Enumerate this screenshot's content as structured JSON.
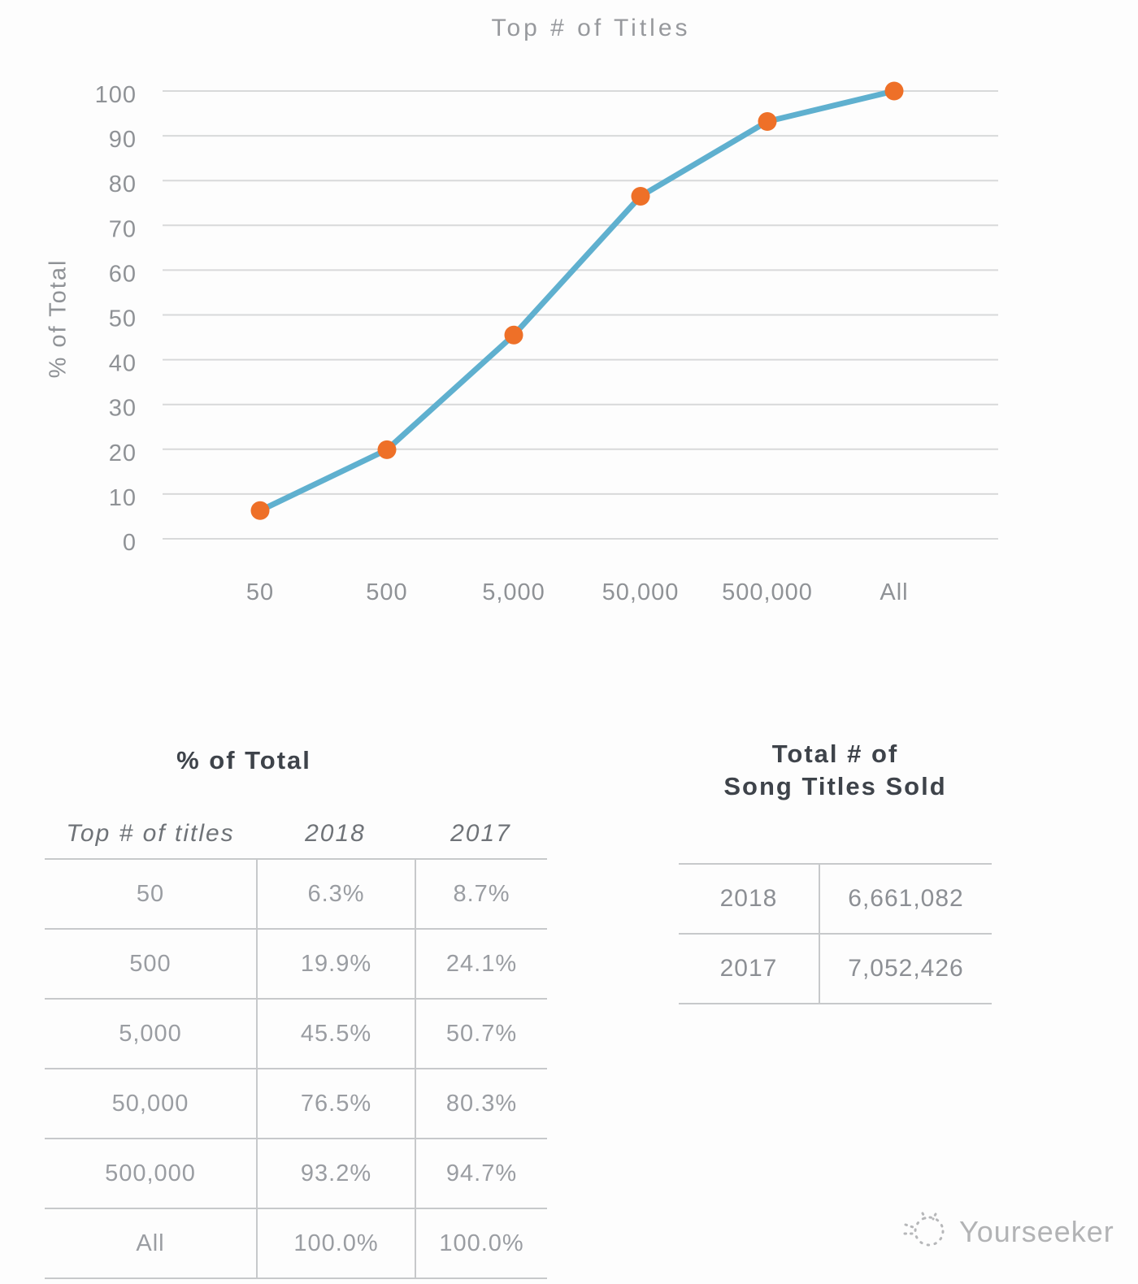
{
  "chart_data": {
    "type": "line",
    "title": "Top # of Titles",
    "xlabel": "Top # of titles",
    "ylabel": "% of Total",
    "categories": [
      "50",
      "500",
      "5,000",
      "50,000",
      "500,000",
      "All"
    ],
    "series": [
      {
        "name": "2018",
        "values": [
          6.3,
          19.9,
          45.5,
          76.5,
          93.2,
          100.0
        ]
      }
    ],
    "ylim": [
      0,
      100
    ],
    "y_ticks": [
      0,
      10,
      20,
      30,
      40,
      50,
      60,
      70,
      80,
      90,
      100
    ],
    "grid": true,
    "legend": false,
    "line_color": "#5fb0cf",
    "marker_color": "#ee7028",
    "gridline_color": "#d8d9da",
    "tick_label_color": "#8f9296"
  },
  "tables": {
    "pct_of_total": {
      "title": "% of Total",
      "columns": [
        "Top # of titles",
        "2018",
        "2017"
      ],
      "rows": [
        {
          "titles": "50",
          "y2018": "6.3%",
          "y2017": "8.7%"
        },
        {
          "titles": "500",
          "y2018": "19.9%",
          "y2017": "24.1%"
        },
        {
          "titles": "5,000",
          "y2018": "45.5%",
          "y2017": "50.7%"
        },
        {
          "titles": "50,000",
          "y2018": "76.5%",
          "y2017": "80.3%"
        },
        {
          "titles": "500,000",
          "y2018": "93.2%",
          "y2017": "94.7%"
        },
        {
          "titles": "All",
          "y2018": "100.0%",
          "y2017": "100.0%"
        }
      ]
    },
    "song_titles_sold": {
      "title_line1": "Total # of",
      "title_line2": "Song Titles Sold",
      "rows": [
        {
          "year": "2018",
          "value": "6,661,082"
        },
        {
          "year": "2017",
          "value": "7,052,426"
        }
      ]
    }
  },
  "watermark": {
    "brand": "Yourseeker"
  }
}
